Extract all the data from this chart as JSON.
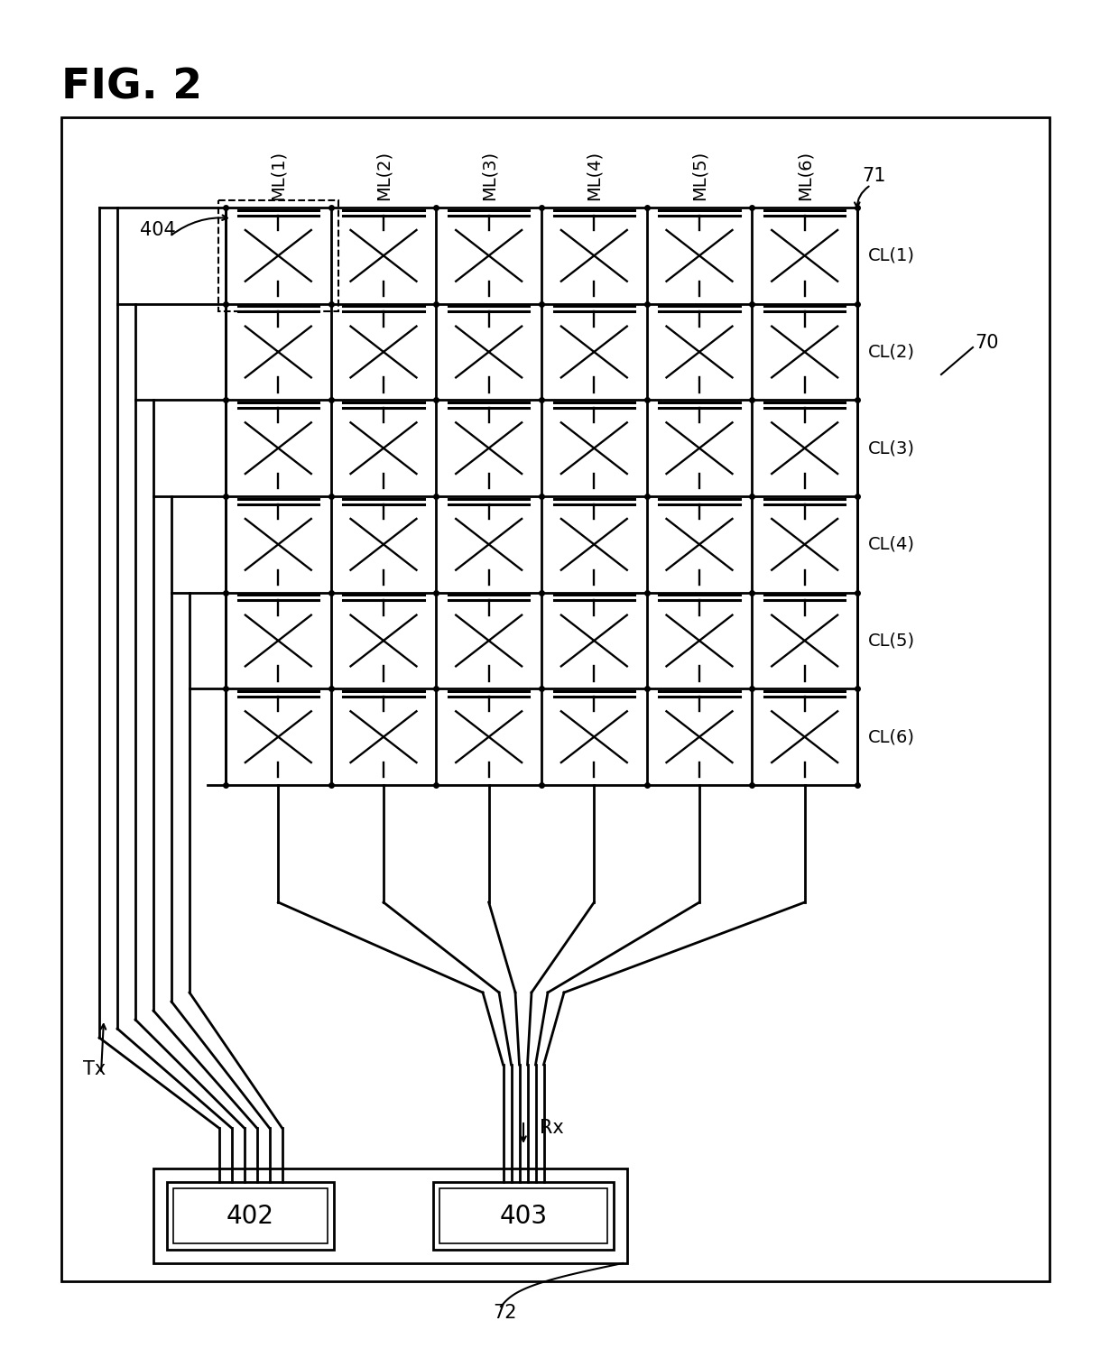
{
  "title": "FIG. 2",
  "background_color": "#ffffff",
  "line_color": "#000000",
  "grid_rows": 6,
  "grid_cols": 6,
  "ml_labels": [
    "ML(1)",
    "ML(2)",
    "ML(3)",
    "ML(4)",
    "ML(5)",
    "ML(6)"
  ],
  "cl_labels": [
    "CL(1)",
    "CL(2)",
    "CL(3)",
    "CL(4)",
    "CL(5)",
    "CL(6)"
  ],
  "box_labels": [
    "402",
    "403"
  ],
  "label_404": "404",
  "label_71": "71",
  "label_70": "70",
  "label_72": "72",
  "label_tx": "Tx",
  "label_rx": "Rx",
  "fig_w": 1240,
  "fig_h": 1515
}
